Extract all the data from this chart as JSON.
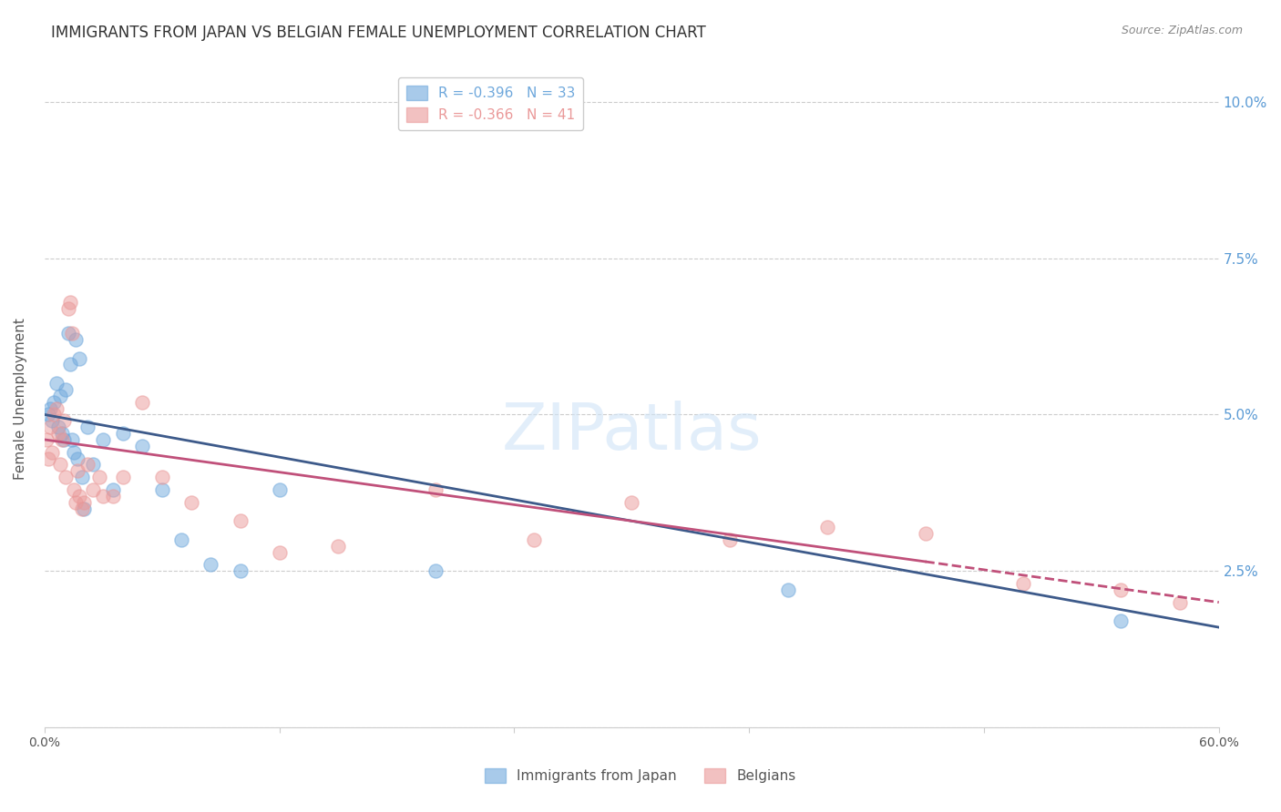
{
  "title": "IMMIGRANTS FROM JAPAN VS BELGIAN FEMALE UNEMPLOYMENT CORRELATION CHART",
  "source": "Source: ZipAtlas.com",
  "xlabel": "",
  "ylabel": "Female Unemployment",
  "xlim": [
    0.0,
    0.6
  ],
  "ylim": [
    0.0,
    0.105
  ],
  "yticks": [
    0.0,
    0.025,
    0.05,
    0.075,
    0.1
  ],
  "ytick_labels": [
    "",
    "2.5%",
    "5.0%",
    "7.5%",
    "10.0%"
  ],
  "xticks": [
    0.0,
    0.12,
    0.24,
    0.36,
    0.48,
    0.6
  ],
  "xtick_labels": [
    "0.0%",
    "",
    "",
    "",
    "",
    "60.0%"
  ],
  "legend_entries": [
    {
      "label": "R = -0.396   N = 33",
      "color": "#6fa8dc"
    },
    {
      "label": "R = -0.366   N = 41",
      "color": "#ea9999"
    }
  ],
  "blue_scatter_x": [
    0.002,
    0.003,
    0.004,
    0.005,
    0.006,
    0.007,
    0.008,
    0.009,
    0.01,
    0.011,
    0.012,
    0.013,
    0.014,
    0.015,
    0.016,
    0.017,
    0.018,
    0.019,
    0.02,
    0.022,
    0.025,
    0.03,
    0.035,
    0.04,
    0.05,
    0.06,
    0.07,
    0.085,
    0.1,
    0.12,
    0.2,
    0.38,
    0.55
  ],
  "blue_scatter_y": [
    0.05,
    0.051,
    0.049,
    0.052,
    0.055,
    0.048,
    0.053,
    0.047,
    0.046,
    0.054,
    0.063,
    0.058,
    0.046,
    0.044,
    0.062,
    0.043,
    0.059,
    0.04,
    0.035,
    0.048,
    0.042,
    0.046,
    0.038,
    0.047,
    0.045,
    0.038,
    0.03,
    0.026,
    0.025,
    0.038,
    0.025,
    0.022,
    0.017
  ],
  "pink_scatter_x": [
    0.001,
    0.002,
    0.003,
    0.004,
    0.005,
    0.006,
    0.007,
    0.008,
    0.009,
    0.01,
    0.011,
    0.012,
    0.013,
    0.014,
    0.015,
    0.016,
    0.017,
    0.018,
    0.019,
    0.02,
    0.022,
    0.025,
    0.028,
    0.03,
    0.035,
    0.04,
    0.05,
    0.06,
    0.075,
    0.1,
    0.12,
    0.15,
    0.2,
    0.25,
    0.3,
    0.35,
    0.4,
    0.45,
    0.5,
    0.55,
    0.58
  ],
  "pink_scatter_y": [
    0.046,
    0.043,
    0.048,
    0.044,
    0.05,
    0.051,
    0.047,
    0.042,
    0.046,
    0.049,
    0.04,
    0.067,
    0.068,
    0.063,
    0.038,
    0.036,
    0.041,
    0.037,
    0.035,
    0.036,
    0.042,
    0.038,
    0.04,
    0.037,
    0.037,
    0.04,
    0.052,
    0.04,
    0.036,
    0.033,
    0.028,
    0.029,
    0.038,
    0.03,
    0.036,
    0.03,
    0.032,
    0.031,
    0.023,
    0.022,
    0.02
  ],
  "blue_line_x": [
    0.0,
    0.6
  ],
  "blue_line_y": [
    0.05,
    0.016
  ],
  "pink_line_x": [
    0.0,
    0.6
  ],
  "pink_line_y": [
    0.046,
    0.02
  ],
  "watermark": "ZIPatlas",
  "background_color": "#ffffff",
  "scatter_size": 120,
  "blue_color": "#6fa8dc",
  "pink_color": "#ea9999",
  "blue_line_color": "#3d5a8a",
  "pink_line_color": "#c0507a",
  "axis_color": "#cccccc",
  "right_ytick_color": "#5b9bd5",
  "title_fontsize": 12,
  "label_fontsize": 11
}
